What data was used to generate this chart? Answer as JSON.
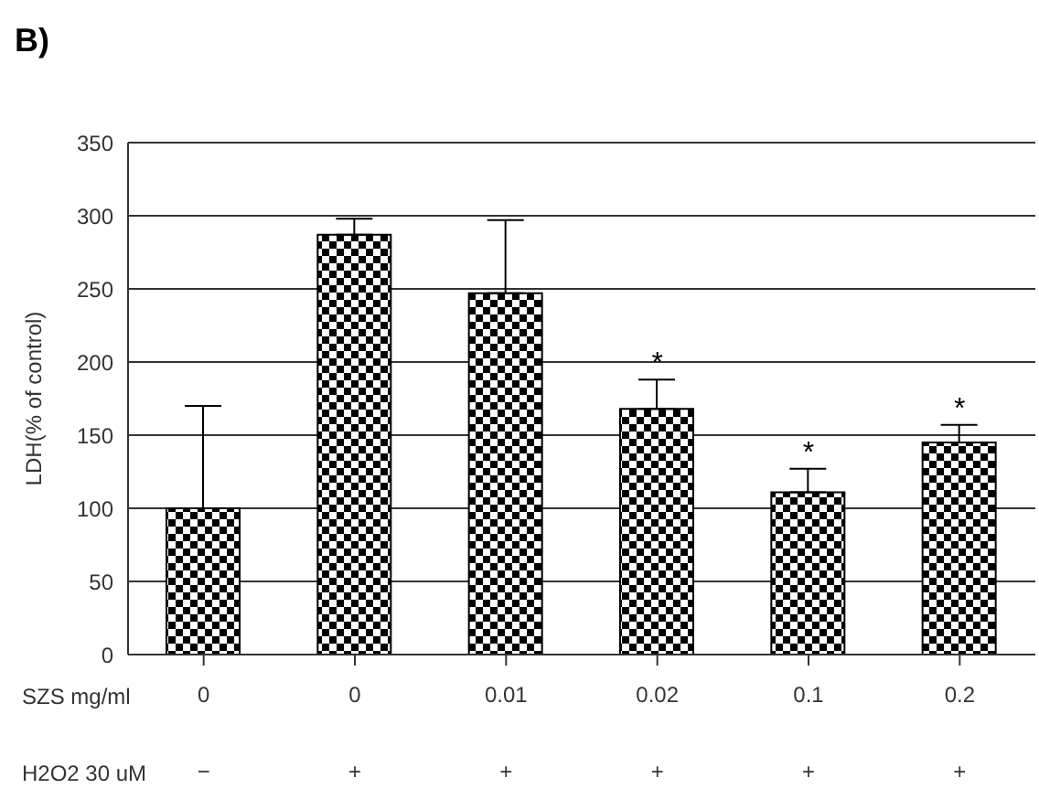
{
  "chart_data": {
    "type": "bar",
    "title": "B)",
    "ylabel": "LDH(% of control)",
    "xlabel": "SZS mg/ml",
    "categories": [
      "0",
      "0",
      "0.01",
      "0.02",
      "0.1",
      "0.2"
    ],
    "values": [
      100,
      287,
      247,
      168,
      111,
      145
    ],
    "errors": [
      [
        100,
        170
      ],
      [
        287,
        298
      ],
      [
        247,
        297
      ],
      [
        168,
        188
      ],
      [
        111,
        127
      ],
      [
        145,
        157
      ]
    ],
    "color": "#000000",
    "ylim": [
      0,
      350
    ],
    "yticks": [
      0,
      50,
      100,
      150,
      200,
      250,
      300,
      350
    ],
    "grid": "y",
    "legend": false,
    "annotations": [
      "H2O2  30 uM",
      "−",
      "+",
      "+",
      "+",
      "+",
      "+",
      {
        "text": "*",
        "x": "0.02",
        "y": 188
      },
      {
        "text": "*",
        "x": "0.1",
        "y": 127
      },
      {
        "text": "*",
        "x": "0.2",
        "y": 157
      }
    ]
  }
}
